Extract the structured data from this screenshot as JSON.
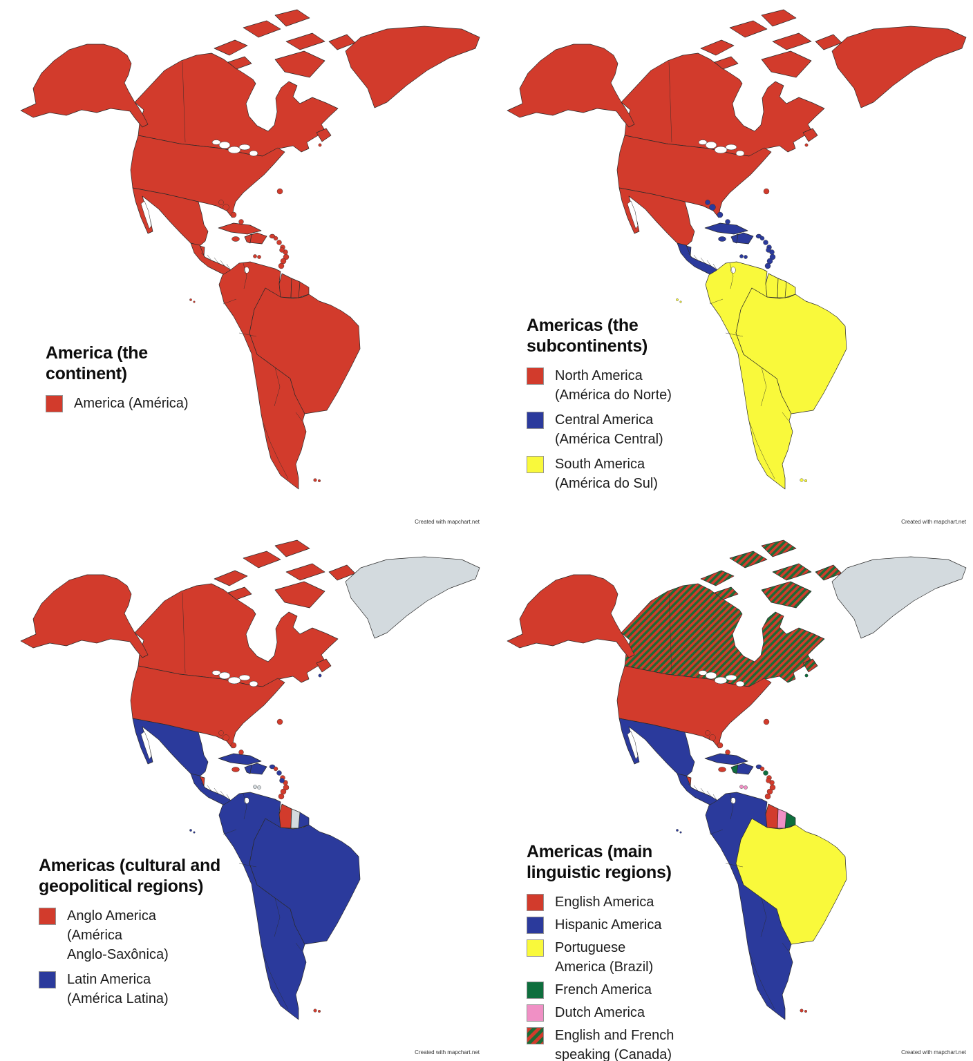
{
  "watermark": "Created with mapchart.net",
  "colors": {
    "red": "#d23b2c",
    "blue": "#2b3a9c",
    "yellow": "#f9f93b",
    "green": "#0e6e3d",
    "pink": "#f090c5",
    "gray": "#d3dade",
    "white": "#ffffff",
    "hatch_stripe_green": "#1e6b35",
    "outline": "#2a2a2a"
  },
  "panels": [
    {
      "title": "America (the\ncontinent)",
      "legend": [
        {
          "color": "red",
          "label": "America (América)"
        }
      ],
      "regions": {
        "greenland": "red",
        "canada": "red",
        "alaska": "red",
        "usa": "red",
        "mexico": "red",
        "belize": "red",
        "central_america": "red",
        "cuba": "red",
        "hispaniola": "red",
        "haiti": "red",
        "jamaica": "red",
        "puerto_rico": "red",
        "bahamas": "red",
        "bermuda": "red",
        "lesser_antilles": "red",
        "guadeloupe": "red",
        "martinique": "red",
        "trinidad": "red",
        "curacao": "red",
        "stpierre": "red",
        "sa_west": "red",
        "brazil": "red",
        "guyana": "red",
        "suriname": "red",
        "french_guiana": "red",
        "falklands": "red",
        "galapagos": "red"
      }
    },
    {
      "title": "Americas (the\nsubcontinents)",
      "legend": [
        {
          "color": "red",
          "label": "North America\n(América do Norte)"
        },
        {
          "color": "blue",
          "label": "Central America\n(América Central)"
        },
        {
          "color": "yellow",
          "label": "South America\n(América do Sul)"
        }
      ],
      "regions": {
        "greenland": "red",
        "canada": "red",
        "alaska": "red",
        "usa": "red",
        "mexico": "red",
        "belize": "blue",
        "central_america": "blue",
        "cuba": "blue",
        "hispaniola": "blue",
        "haiti": "blue",
        "jamaica": "blue",
        "puerto_rico": "blue",
        "bahamas": "blue",
        "bermuda": "red",
        "lesser_antilles": "blue",
        "guadeloupe": "blue",
        "martinique": "blue",
        "trinidad": "blue",
        "curacao": "blue",
        "stpierre": "red",
        "sa_west": "yellow",
        "brazil": "yellow",
        "guyana": "yellow",
        "suriname": "yellow",
        "french_guiana": "yellow",
        "falklands": "yellow",
        "galapagos": "yellow"
      }
    },
    {
      "title": "Americas (cultural and\ngeopolitical regions)",
      "legend": [
        {
          "color": "red",
          "label": "Anglo America\n(América\nAnglo-Saxônica)"
        },
        {
          "color": "blue",
          "label": "Latin America\n(América Latina)"
        }
      ],
      "regions": {
        "greenland": "gray",
        "canada": "red",
        "alaska": "red",
        "usa": "red",
        "mexico": "blue",
        "belize": "red",
        "central_america": "blue",
        "cuba": "blue",
        "hispaniola": "blue",
        "haiti": "blue",
        "jamaica": "red",
        "puerto_rico": "blue",
        "bahamas": "red",
        "bermuda": "red",
        "lesser_antilles": "red",
        "guadeloupe": "blue",
        "martinique": "blue",
        "trinidad": "red",
        "curacao": "gray",
        "stpierre": "blue",
        "sa_west": "blue",
        "brazil": "blue",
        "guyana": "red",
        "suriname": "gray",
        "french_guiana": "blue",
        "falklands": "red",
        "galapagos": "blue"
      }
    },
    {
      "title": "Americas (main\nlinguistic regions)",
      "legend": [
        {
          "color": "red",
          "label": "English America"
        },
        {
          "color": "blue",
          "label": "Hispanic America"
        },
        {
          "color": "yellow",
          "label": "Portuguese\nAmerica (Brazil)"
        },
        {
          "color": "green",
          "label": "French America"
        },
        {
          "color": "pink",
          "label": "Dutch America"
        },
        {
          "color": "hatch",
          "label": "English and French\nspeaking (Canada)"
        }
      ],
      "regions": {
        "greenland": "gray",
        "canada": "hatch",
        "alaska": "red",
        "usa": "red",
        "mexico": "blue",
        "belize": "red",
        "central_america": "blue",
        "cuba": "blue",
        "hispaniola": "blue",
        "haiti": "green",
        "jamaica": "red",
        "puerto_rico": "blue",
        "bahamas": "red",
        "bermuda": "red",
        "lesser_antilles": "red",
        "guadeloupe": "green",
        "martinique": "red",
        "trinidad": "red",
        "curacao": "pink",
        "stpierre": "green",
        "sa_west": "blue",
        "brazil": "yellow",
        "guyana": "red",
        "suriname": "pink",
        "french_guiana": "green",
        "falklands": "red",
        "galapagos": "blue"
      }
    }
  ]
}
